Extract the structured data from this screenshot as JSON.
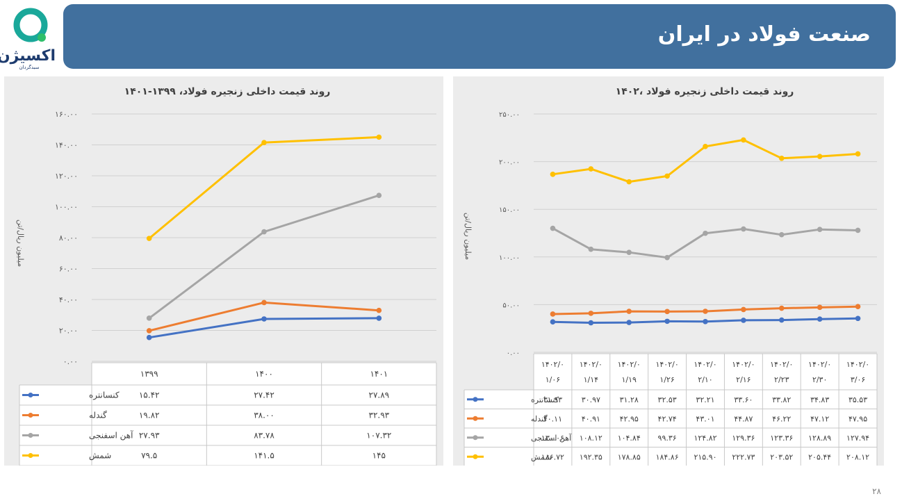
{
  "header": {
    "title": "صنعت فولاد در ایران",
    "logo_name": "اکسیژن",
    "logo_sub": "سبدگردان"
  },
  "page_number": "۲۸",
  "colors": {
    "banner": "#41709e",
    "series": [
      "#4472c4",
      "#ed7d31",
      "#a5a5a5",
      "#ffc000"
    ]
  },
  "chart_data": [
    {
      "type": "line",
      "title": "روند قیمت داخلی زنجیره فولاد، ۱۳۹۹-۱۴۰۱",
      "ylabel": "میلیون ریال/تن",
      "ylim": [
        0,
        160
      ],
      "yticks": [
        "۰.۰۰",
        "۲۰.۰۰",
        "۴۰.۰۰",
        "۶۰.۰۰",
        "۸۰.۰۰",
        "۱۰۰.۰۰",
        "۱۲۰.۰۰",
        "۱۴۰.۰۰",
        "۱۶۰.۰۰"
      ],
      "grid": true,
      "categories": [
        [
          "۱۳۹۹"
        ],
        [
          "۱۴۰۰"
        ],
        [
          "۱۴۰۱"
        ]
      ],
      "series": [
        {
          "name": "کنسانتره",
          "values": [
            15.42,
            27.42,
            27.89
          ],
          "labels": [
            "۱۵.۴۲",
            "۲۷.۴۲",
            "۲۷.۸۹"
          ]
        },
        {
          "name": "گندله",
          "values": [
            19.82,
            38.0,
            32.93
          ],
          "labels": [
            "۱۹.۸۲",
            "۳۸.۰۰",
            "۳۲.۹۳"
          ]
        },
        {
          "name": "آهن اسفنجی",
          "values": [
            27.93,
            83.78,
            107.32
          ],
          "labels": [
            "۲۷.۹۳",
            "۸۳.۷۸",
            "۱۰۷.۳۲"
          ]
        },
        {
          "name": "شمش",
          "values": [
            79.5,
            141.5,
            145
          ],
          "labels": [
            "۷۹.۵",
            "۱۴۱.۵",
            "۱۴۵"
          ]
        }
      ]
    },
    {
      "type": "line",
      "title": "روند قیمت داخلی زنجیره فولاد ،۱۴۰۲",
      "ylabel": "میلیون ریال/تن",
      "ylim": [
        0,
        250
      ],
      "yticks": [
        "۰.۰۰",
        "۵۰.۰۰",
        "۱۰۰.۰۰",
        "۱۵۰.۰۰",
        "۲۰۰.۰۰",
        "۲۵۰.۰۰"
      ],
      "grid": true,
      "categories": [
        [
          "۱۴۰۲/۰",
          "۱/۰۶"
        ],
        [
          "۱۴۰۲/۰",
          "۱/۱۴"
        ],
        [
          "۱۴۰۲/۰",
          "۱/۱۹"
        ],
        [
          "۱۴۰۲/۰",
          "۱/۲۶"
        ],
        [
          "۱۴۰۲/۰",
          "۲/۱۰"
        ],
        [
          "۱۴۰۲/۰",
          "۲/۱۶"
        ],
        [
          "۱۴۰۲/۰",
          "۲/۲۳"
        ],
        [
          "۱۴۰۲/۰",
          "۲/۳۰"
        ],
        [
          "۱۴۰۲/۰",
          "۳/۰۶"
        ]
      ],
      "series": [
        {
          "name": "کنسانتره",
          "values": [
            31.93,
            30.97,
            31.28,
            32.53,
            32.21,
            33.6,
            33.82,
            34.83,
            35.53
          ],
          "labels": [
            "۳۱.۹۳",
            "۳۰.۹۷",
            "۳۱.۲۸",
            "۳۲.۵۳",
            "۳۲.۲۱",
            "۳۳.۶۰",
            "۳۳.۸۲",
            "۳۴.۸۳",
            "۳۵.۵۳"
          ]
        },
        {
          "name": "گندله",
          "values": [
            40.11,
            40.91,
            42.95,
            42.74,
            43.01,
            44.87,
            46.22,
            47.12,
            47.95
          ],
          "labels": [
            "۴۰.۱۱",
            "۴۰.۹۱",
            "۴۲.۹۵",
            "۴۲.۷۴",
            "۴۳.۰۱",
            "۴۴.۸۷",
            "۴۶.۲۲",
            "۴۷.۱۲",
            "۴۷.۹۵"
          ]
        },
        {
          "name": "آهن اسفنجی",
          "values": [
            130.06,
            108.12,
            104.84,
            99.36,
            124.82,
            129.36,
            123.36,
            128.89,
            127.94
          ],
          "labels": [
            "۱۳۰.۰۶",
            "۱۰۸.۱۲",
            "۱۰۴.۸۴",
            "۹۹.۳۶",
            "۱۲۴.۸۲",
            "۱۲۹.۳۶",
            "۱۲۳.۳۶",
            "۱۲۸.۸۹",
            "۱۲۷.۹۴"
          ]
        },
        {
          "name": "شمش",
          "values": [
            186.72,
            192.35,
            178.85,
            184.86,
            215.9,
            222.73,
            203.52,
            205.44,
            208.12
          ],
          "labels": [
            "۱۸۶.۷۲",
            "۱۹۲.۳۵",
            "۱۷۸.۸۵",
            "۱۸۴.۸۶",
            "۲۱۵.۹۰",
            "۲۲۲.۷۳",
            "۲۰۳.۵۲",
            "۲۰۵.۴۴",
            "۲۰۸.۱۲"
          ]
        }
      ]
    }
  ]
}
